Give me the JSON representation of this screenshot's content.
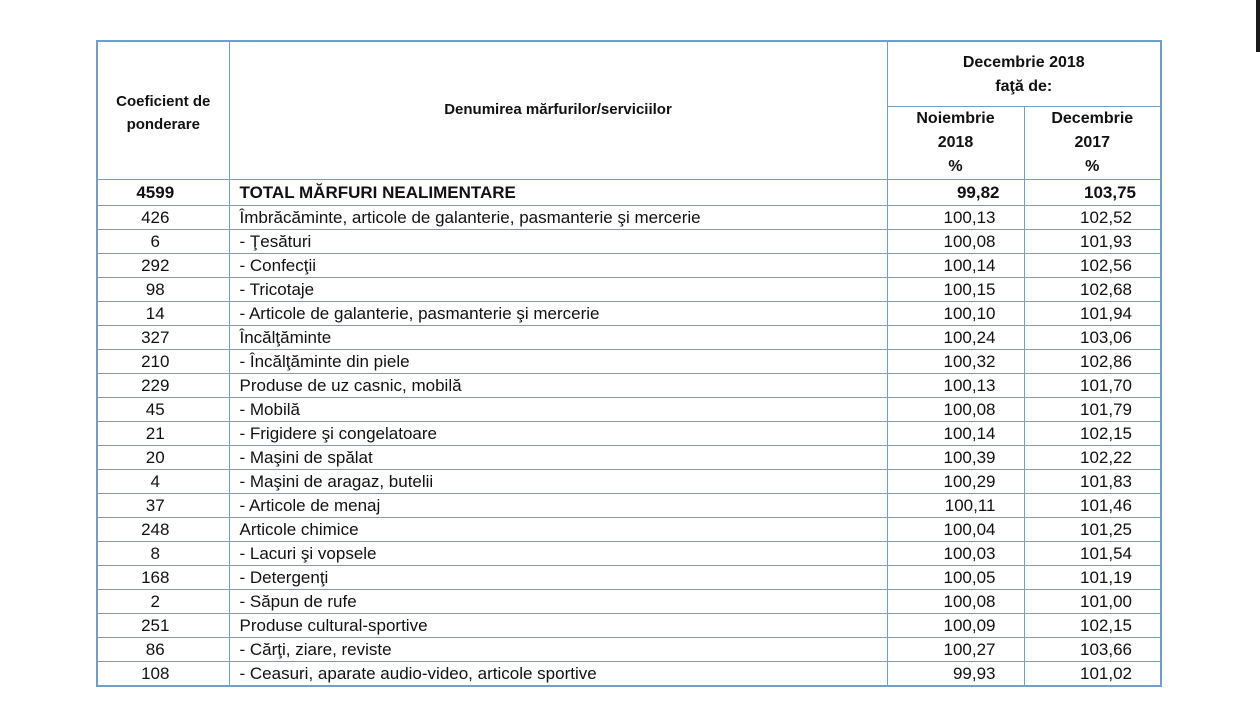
{
  "header": {
    "coef": "Coeficient de ponderare",
    "name": "Denumirea mărfurilor/serviciilor",
    "group": "Decembrie  2018\nfaţă de:",
    "col1": "Noiembrie\n2018\n%",
    "col2": "Decembrie\n2017\n%"
  },
  "rows": [
    {
      "coef": "4599",
      "name": "TOTAL MĂRFURI NEALIMENTARE",
      "v1": "99,82",
      "v2": "103,75",
      "bold": true
    },
    {
      "coef": "426",
      "name": "Îmbrăcăminte, articole de galanterie, pasmanterie şi mercerie",
      "v1": "100,13",
      "v2": "102,52"
    },
    {
      "coef": "6",
      "name": "- Ţesături",
      "v1": "100,08",
      "v2": "101,93"
    },
    {
      "coef": "292",
      "name": "- Confecţii",
      "v1": "100,14",
      "v2": "102,56"
    },
    {
      "coef": "98",
      "name": "- Tricotaje",
      "v1": "100,15",
      "v2": "102,68"
    },
    {
      "coef": "14",
      "name": "- Articole de galanterie, pasmanterie şi mercerie",
      "v1": "100,10",
      "v2": "101,94"
    },
    {
      "coef": "327",
      "name": "Încălţăminte",
      "v1": "100,24",
      "v2": "103,06"
    },
    {
      "coef": "210",
      "name": "- Încălţăminte din piele",
      "v1": "100,32",
      "v2": "102,86"
    },
    {
      "coef": "229",
      "name": "Produse de uz casnic, mobilă",
      "v1": "100,13",
      "v2": "101,70"
    },
    {
      "coef": "45",
      "name": "- Mobilă",
      "v1": "100,08",
      "v2": "101,79"
    },
    {
      "coef": "21",
      "name": "- Frigidere şi congelatoare",
      "v1": "100,14",
      "v2": "102,15"
    },
    {
      "coef": "20",
      "name": "- Maşini de spălat",
      "v1": "100,39",
      "v2": "102,22"
    },
    {
      "coef": "4",
      "name": "- Maşini de aragaz, butelii",
      "v1": "100,29",
      "v2": "101,83"
    },
    {
      "coef": "37",
      "name": "- Articole de menaj",
      "v1": "100,11",
      "v2": "101,46"
    },
    {
      "coef": "248",
      "name": "Articole chimice",
      "v1": "100,04",
      "v2": "101,25"
    },
    {
      "coef": "8",
      "name": "- Lacuri şi vopsele",
      "v1": "100,03",
      "v2": "101,54"
    },
    {
      "coef": "168",
      "name": "- Detergenţi",
      "v1": "100,05",
      "v2": "101,19"
    },
    {
      "coef": "2",
      "name": "- Săpun de rufe",
      "v1": "100,08",
      "v2": "101,00"
    },
    {
      "coef": "251",
      "name": "Produse cultural-sportive",
      "v1": "100,09",
      "v2": "102,15"
    },
    {
      "coef": "86",
      "name": "- Cărţi, ziare, reviste",
      "v1": "100,27",
      "v2": "103,66"
    },
    {
      "coef": "108",
      "name": "- Ceasuri, aparate audio-video, articole sportive",
      "v1": "99,93",
      "v2": "101,02"
    }
  ]
}
